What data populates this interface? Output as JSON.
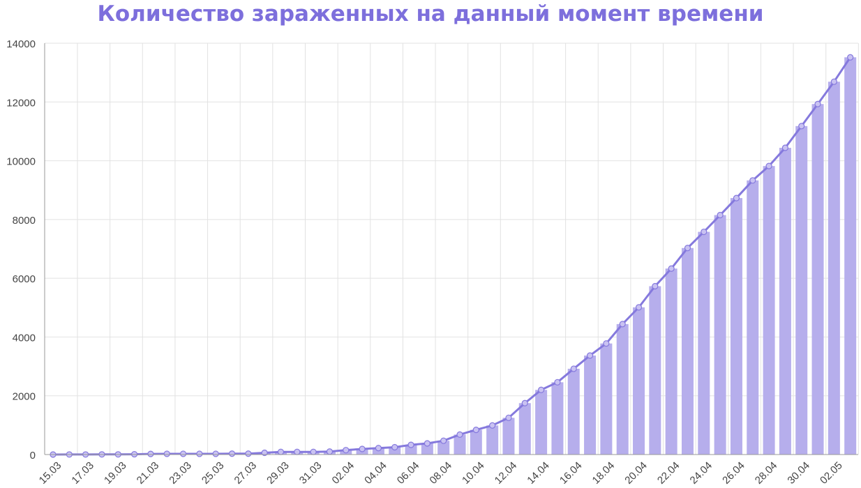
{
  "chart_data": {
    "type": "bar",
    "title": "Количество зараженных на данный момент времени",
    "xlabel": "",
    "ylabel": "",
    "ylim": [
      0,
      14000
    ],
    "yticks": [
      "0",
      "2000",
      "4000",
      "6000",
      "8000",
      "10000",
      "12000",
      "14000"
    ],
    "grid": true,
    "legend": "none",
    "tick_labels": [
      "15.03",
      "17.03",
      "19.03",
      "21.03",
      "23.03",
      "25.03",
      "27.03",
      "29.03",
      "31.03",
      "02.04",
      "04.04",
      "06.04",
      "08.04",
      "10.04",
      "12.04",
      "14.04",
      "16.04",
      "18.04",
      "20.04",
      "22.04",
      "24.04",
      "26.04",
      "28.04",
      "30.04",
      "02.05"
    ],
    "categories": [
      "15.03",
      "16.03",
      "17.03",
      "18.03",
      "19.03",
      "20.03",
      "21.03",
      "22.03",
      "23.03",
      "24.03",
      "25.03",
      "26.03",
      "27.03",
      "28.03",
      "29.03",
      "30.03",
      "31.03",
      "01.04",
      "02.04",
      "03.04",
      "04.04",
      "05.04",
      "06.04",
      "07.04",
      "08.04",
      "09.04",
      "10.04",
      "11.04",
      "12.04",
      "13.04",
      "14.04",
      "15.04",
      "16.04",
      "17.04",
      "18.04",
      "19.04",
      "20.04",
      "21.04",
      "22.04",
      "23.04",
      "24.04",
      "25.04",
      "26.04",
      "27.04",
      "28.04",
      "29.04",
      "30.04",
      "01.05",
      "02.05",
      "03.05"
    ],
    "values": [
      0,
      2,
      2,
      5,
      5,
      10,
      20,
      25,
      25,
      25,
      25,
      30,
      30,
      60,
      90,
      90,
      90,
      100,
      150,
      190,
      220,
      250,
      330,
      380,
      470,
      680,
      840,
      990,
      1250,
      1750,
      2200,
      2460,
      2920,
      3370,
      3780,
      4440,
      5010,
      5730,
      6330,
      7030,
      7580,
      8150,
      8730,
      9330,
      9820,
      10440,
      11180,
      11930,
      12690,
      13520
    ],
    "colors": {
      "bar": "#b6aeec",
      "line": "#8579dd",
      "title": "#7d6fdc"
    }
  }
}
